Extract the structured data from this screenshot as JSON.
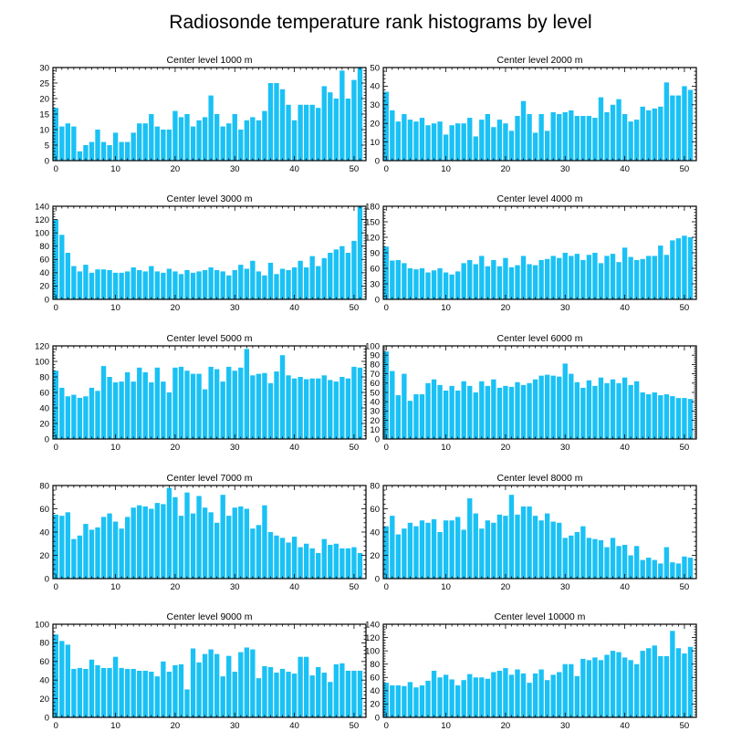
{
  "figure": {
    "title": "Radiosonde temperature rank histograms by level",
    "bar_color": "#1ac1f5",
    "axis_color": "#000000"
  },
  "chart_data": [
    {
      "type": "bar",
      "title": "Center level 1000 m",
      "x": [
        0,
        1,
        2,
        3,
        4,
        5,
        6,
        7,
        8,
        9,
        10,
        11,
        12,
        13,
        14,
        15,
        16,
        17,
        18,
        19,
        20,
        21,
        22,
        23,
        24,
        25,
        26,
        27,
        28,
        29,
        30,
        31,
        32,
        33,
        34,
        35,
        36,
        37,
        38,
        39,
        40,
        41,
        42,
        43,
        44,
        45,
        46,
        47,
        48,
        49,
        50,
        51
      ],
      "values": [
        17,
        11,
        12,
        11,
        3,
        5,
        6,
        10,
        6,
        5,
        9,
        6,
        6,
        9,
        12,
        12,
        15,
        11,
        10,
        10,
        16,
        14,
        15,
        11,
        13,
        14,
        21,
        15,
        11,
        12,
        15,
        10,
        13,
        14,
        13,
        16,
        25,
        25,
        23,
        18,
        13,
        18,
        18,
        18,
        17,
        24,
        22,
        20,
        29,
        20,
        26,
        30
      ],
      "xlim": [
        -0.5,
        52
      ],
      "ylim": [
        0,
        30
      ],
      "xticks": [
        0,
        10,
        20,
        30,
        40,
        50
      ],
      "yticks": [
        0,
        5,
        10,
        15,
        20,
        25,
        30
      ]
    },
    {
      "type": "bar",
      "title": "Center level 2000 m",
      "x": [
        0,
        1,
        2,
        3,
        4,
        5,
        6,
        7,
        8,
        9,
        10,
        11,
        12,
        13,
        14,
        15,
        16,
        17,
        18,
        19,
        20,
        21,
        22,
        23,
        24,
        25,
        26,
        27,
        28,
        29,
        30,
        31,
        32,
        33,
        34,
        35,
        36,
        37,
        38,
        39,
        40,
        41,
        42,
        43,
        44,
        45,
        46,
        47,
        48,
        49,
        50,
        51
      ],
      "values": [
        37,
        27,
        21,
        25,
        22,
        21,
        23,
        19,
        20,
        21,
        14,
        19,
        20,
        20,
        23,
        13,
        22,
        25,
        18,
        22,
        20,
        16,
        24,
        32,
        25,
        15,
        25,
        16,
        26,
        25,
        26,
        27,
        24,
        24,
        24,
        23,
        34,
        26,
        30,
        33,
        25,
        21,
        22,
        29,
        27,
        28,
        29,
        42,
        35,
        35,
        40,
        38
      ],
      "xlim": [
        -0.5,
        52
      ],
      "ylim": [
        0,
        50
      ],
      "xticks": [
        0,
        10,
        20,
        30,
        40,
        50
      ],
      "yticks": [
        0,
        10,
        20,
        30,
        40,
        50
      ]
    },
    {
      "type": "bar",
      "title": "Center level 3000 m",
      "x": [
        0,
        1,
        2,
        3,
        4,
        5,
        6,
        7,
        8,
        9,
        10,
        11,
        12,
        13,
        14,
        15,
        16,
        17,
        18,
        19,
        20,
        21,
        22,
        23,
        24,
        25,
        26,
        27,
        28,
        29,
        30,
        31,
        32,
        33,
        34,
        35,
        36,
        37,
        38,
        39,
        40,
        41,
        42,
        43,
        44,
        45,
        46,
        47,
        48,
        49,
        50,
        51
      ],
      "values": [
        120,
        97,
        70,
        50,
        42,
        52,
        40,
        45,
        45,
        44,
        40,
        40,
        42,
        48,
        44,
        42,
        50,
        42,
        40,
        46,
        42,
        38,
        44,
        40,
        42,
        44,
        48,
        44,
        42,
        36,
        44,
        52,
        46,
        58,
        42,
        36,
        55,
        38,
        46,
        44,
        48,
        58,
        48,
        65,
        50,
        62,
        70,
        75,
        80,
        70,
        88,
        140
      ],
      "xlim": [
        -0.5,
        52
      ],
      "ylim": [
        0,
        140
      ],
      "xticks": [
        0,
        10,
        20,
        30,
        40,
        50
      ],
      "yticks": [
        0,
        20,
        40,
        60,
        80,
        100,
        120,
        140
      ]
    },
    {
      "type": "bar",
      "title": "Center level 4000 m",
      "x": [
        0,
        1,
        2,
        3,
        4,
        5,
        6,
        7,
        8,
        9,
        10,
        11,
        12,
        13,
        14,
        15,
        16,
        17,
        18,
        19,
        20,
        21,
        22,
        23,
        24,
        25,
        26,
        27,
        28,
        29,
        30,
        31,
        32,
        33,
        34,
        35,
        36,
        37,
        38,
        39,
        40,
        41,
        42,
        43,
        44,
        45,
        46,
        47,
        48,
        49,
        50,
        51
      ],
      "values": [
        102,
        75,
        76,
        70,
        60,
        58,
        60,
        52,
        56,
        60,
        52,
        48,
        54,
        70,
        76,
        68,
        84,
        64,
        76,
        64,
        80,
        62,
        66,
        84,
        68,
        66,
        76,
        78,
        84,
        80,
        90,
        84,
        88,
        76,
        86,
        90,
        70,
        84,
        88,
        72,
        100,
        82,
        76,
        78,
        84,
        84,
        104,
        86,
        114,
        118,
        123,
        120
      ],
      "xlim": [
        -0.5,
        52
      ],
      "ylim": [
        0,
        180
      ],
      "xticks": [
        0,
        10,
        20,
        30,
        40,
        50
      ],
      "yticks": [
        0,
        30,
        60,
        90,
        120,
        150,
        180
      ]
    },
    {
      "type": "bar",
      "title": "Center level 5000 m",
      "x": [
        0,
        1,
        2,
        3,
        4,
        5,
        6,
        7,
        8,
        9,
        10,
        11,
        12,
        13,
        14,
        15,
        16,
        17,
        18,
        19,
        20,
        21,
        22,
        23,
        24,
        25,
        26,
        27,
        28,
        29,
        30,
        31,
        32,
        33,
        34,
        35,
        36,
        37,
        38,
        39,
        40,
        41,
        42,
        43,
        44,
        45,
        46,
        47,
        48,
        49,
        50,
        51
      ],
      "values": [
        88,
        66,
        55,
        57,
        53,
        55,
        66,
        62,
        94,
        80,
        73,
        74,
        86,
        74,
        92,
        86,
        73,
        92,
        74,
        60,
        92,
        93,
        88,
        84,
        84,
        64,
        93,
        90,
        74,
        93,
        88,
        92,
        116,
        82,
        84,
        85,
        72,
        87,
        108,
        82,
        78,
        80,
        77,
        78,
        78,
        82,
        76,
        74,
        80,
        78,
        93,
        92
      ],
      "xlim": [
        -0.5,
        52
      ],
      "ylim": [
        0,
        120
      ],
      "xticks": [
        0,
        10,
        20,
        30,
        40,
        50
      ],
      "yticks": [
        0,
        20,
        40,
        60,
        80,
        100,
        120
      ]
    },
    {
      "type": "bar",
      "title": "Center level 6000 m",
      "x": [
        0,
        1,
        2,
        3,
        4,
        5,
        6,
        7,
        8,
        9,
        10,
        11,
        12,
        13,
        14,
        15,
        16,
        17,
        18,
        19,
        20,
        21,
        22,
        23,
        24,
        25,
        26,
        27,
        28,
        29,
        30,
        31,
        32,
        33,
        34,
        35,
        36,
        37,
        38,
        39,
        40,
        41,
        42,
        43,
        44,
        45,
        46,
        47,
        48,
        49,
        50,
        51
      ],
      "values": [
        94,
        73,
        47,
        70,
        41,
        48,
        48,
        60,
        64,
        58,
        52,
        57,
        52,
        62,
        57,
        50,
        62,
        57,
        64,
        55,
        57,
        56,
        61,
        58,
        60,
        64,
        68,
        69,
        68,
        67,
        81,
        70,
        61,
        55,
        63,
        57,
        66,
        60,
        64,
        60,
        66,
        58,
        62,
        50,
        48,
        50,
        47,
        48,
        46,
        44,
        44,
        43
      ],
      "xlim": [
        -0.5,
        52
      ],
      "ylim": [
        0,
        100
      ],
      "xticks": [
        0,
        10,
        20,
        30,
        40,
        50
      ],
      "yticks": [
        0,
        10,
        20,
        30,
        40,
        50,
        60,
        70,
        80,
        90,
        100
      ]
    },
    {
      "type": "bar",
      "title": "Center level 7000 m",
      "x": [
        0,
        1,
        2,
        3,
        4,
        5,
        6,
        7,
        8,
        9,
        10,
        11,
        12,
        13,
        14,
        15,
        16,
        17,
        18,
        19,
        20,
        21,
        22,
        23,
        24,
        25,
        26,
        27,
        28,
        29,
        30,
        31,
        32,
        33,
        34,
        35,
        36,
        37,
        38,
        39,
        40,
        41,
        42,
        43,
        44,
        45,
        46,
        47,
        48,
        49,
        50,
        51
      ],
      "values": [
        55,
        54,
        57,
        34,
        37,
        47,
        42,
        44,
        53,
        56,
        49,
        43,
        53,
        61,
        63,
        62,
        60,
        65,
        64,
        78,
        70,
        54,
        74,
        56,
        71,
        61,
        57,
        48,
        72,
        54,
        61,
        62,
        60,
        43,
        46,
        63,
        40,
        37,
        35,
        31,
        36,
        27,
        30,
        26,
        22,
        34,
        29,
        30,
        26,
        26,
        27,
        22
      ],
      "xlim": [
        -0.5,
        52
      ],
      "ylim": [
        0,
        80
      ],
      "xticks": [
        0,
        10,
        20,
        30,
        40,
        50
      ],
      "yticks": [
        0,
        20,
        40,
        60,
        80
      ]
    },
    {
      "type": "bar",
      "title": "Center level 8000 m",
      "x": [
        0,
        1,
        2,
        3,
        4,
        5,
        6,
        7,
        8,
        9,
        10,
        11,
        12,
        13,
        14,
        15,
        16,
        17,
        18,
        19,
        20,
        21,
        22,
        23,
        24,
        25,
        26,
        27,
        28,
        29,
        30,
        31,
        32,
        33,
        34,
        35,
        36,
        37,
        38,
        39,
        40,
        41,
        42,
        43,
        44,
        45,
        46,
        47,
        48,
        49,
        50,
        51
      ],
      "values": [
        45,
        54,
        38,
        43,
        48,
        45,
        50,
        48,
        51,
        40,
        50,
        50,
        53,
        42,
        69,
        56,
        43,
        50,
        48,
        55,
        54,
        72,
        55,
        62,
        62,
        54,
        50,
        56,
        49,
        48,
        35,
        37,
        40,
        45,
        35,
        34,
        33,
        27,
        35,
        28,
        29,
        20,
        28,
        16,
        18,
        16,
        13,
        27,
        14,
        13,
        19,
        18
      ],
      "xlim": [
        -0.5,
        52
      ],
      "ylim": [
        0,
        80
      ],
      "xticks": [
        0,
        10,
        20,
        30,
        40,
        50
      ],
      "yticks": [
        0,
        20,
        40,
        60,
        80
      ]
    },
    {
      "type": "bar",
      "title": "Center level 9000 m",
      "x": [
        0,
        1,
        2,
        3,
        4,
        5,
        6,
        7,
        8,
        9,
        10,
        11,
        12,
        13,
        14,
        15,
        16,
        17,
        18,
        19,
        20,
        21,
        22,
        23,
        24,
        25,
        26,
        27,
        28,
        29,
        30,
        31,
        32,
        33,
        34,
        35,
        36,
        37,
        38,
        39,
        40,
        41,
        42,
        43,
        44,
        45,
        46,
        47,
        48,
        49,
        50,
        51
      ],
      "values": [
        89,
        82,
        78,
        52,
        53,
        52,
        62,
        56,
        53,
        53,
        65,
        53,
        52,
        52,
        50,
        50,
        49,
        44,
        60,
        49,
        56,
        57,
        30,
        74,
        59,
        68,
        73,
        68,
        44,
        66,
        49,
        70,
        75,
        73,
        42,
        55,
        54,
        48,
        52,
        49,
        47,
        65,
        65,
        45,
        54,
        48,
        38,
        57,
        58,
        50,
        50,
        50
      ],
      "xlim": [
        -0.5,
        52
      ],
      "ylim": [
        0,
        100
      ],
      "xticks": [
        0,
        10,
        20,
        30,
        40,
        50
      ],
      "yticks": [
        0,
        20,
        40,
        60,
        80,
        100
      ]
    },
    {
      "type": "bar",
      "title": "Center level 10000 m",
      "x": [
        0,
        1,
        2,
        3,
        4,
        5,
        6,
        7,
        8,
        9,
        10,
        11,
        12,
        13,
        14,
        15,
        16,
        17,
        18,
        19,
        20,
        21,
        22,
        23,
        24,
        25,
        26,
        27,
        28,
        29,
        30,
        31,
        32,
        33,
        34,
        35,
        36,
        37,
        38,
        39,
        40,
        41,
        42,
        43,
        44,
        45,
        46,
        47,
        48,
        49,
        50,
        51
      ],
      "values": [
        52,
        48,
        48,
        47,
        53,
        45,
        48,
        55,
        70,
        60,
        64,
        57,
        48,
        56,
        65,
        60,
        60,
        58,
        68,
        70,
        74,
        64,
        72,
        66,
        52,
        66,
        72,
        56,
        64,
        68,
        80,
        80,
        62,
        88,
        86,
        90,
        86,
        94,
        100,
        98,
        90,
        86,
        80,
        100,
        104,
        108,
        92,
        92,
        130,
        104,
        96,
        106
      ],
      "xlim": [
        -0.5,
        52
      ],
      "ylim": [
        0,
        140
      ],
      "xticks": [
        0,
        10,
        20,
        30,
        40,
        50
      ],
      "yticks": [
        0,
        20,
        40,
        60,
        80,
        100,
        120,
        140
      ]
    }
  ]
}
